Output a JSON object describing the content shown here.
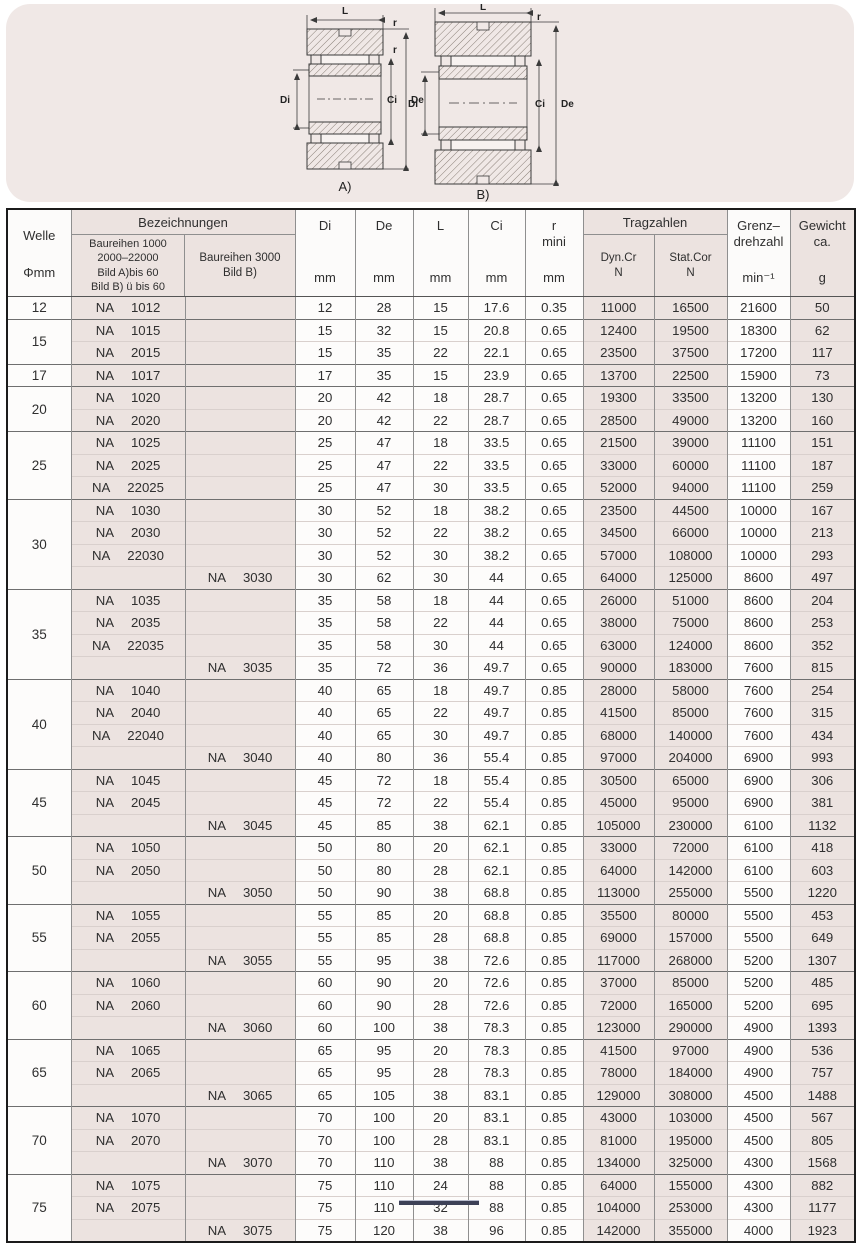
{
  "diagram": {
    "a": {
      "l": "L",
      "r1": "r",
      "r2": "r",
      "di": "Di",
      "ci": "Ci",
      "de": "De",
      "caption": "A)"
    },
    "b": {
      "l": "L",
      "r": "r",
      "di": "Di",
      "ci": "Ci",
      "de": "De",
      "caption": "B)"
    }
  },
  "table": {
    "header": {
      "welle_line1": "Welle",
      "welle_line2": "Φmm",
      "bezeichnungen": "Bezeichnungen",
      "baureihen_a": "Baureihen 1000\n2000–22000\nBild A)bis 60\nBild B) ü bis 60",
      "baureihen_b": "Baureihen 3000\nBild B)",
      "di": "Di",
      "de": "De",
      "l": "L",
      "ci": "Ci",
      "r_top": "r\nmini",
      "mm": "mm",
      "tragzahlen": "Tragzahlen",
      "dyn": "Dyn.Cr\nN",
      "stat": "Stat.Cor\nN",
      "grenz": "Grenz–\ndrehzahl",
      "min": "min⁻¹",
      "gewicht": "Gewicht\nca.",
      "g": "g"
    },
    "groups": [
      {
        "welle": "12",
        "rows": [
          [
            "NA 1012",
            "",
            "12",
            "28",
            "15",
            "17.6",
            "0.35",
            "11000",
            "16500",
            "21600",
            "50"
          ]
        ]
      },
      {
        "welle": "15",
        "rows": [
          [
            "NA 1015",
            "",
            "15",
            "32",
            "15",
            "20.8",
            "0.65",
            "12400",
            "19500",
            "18300",
            "62"
          ],
          [
            "NA 2015",
            "",
            "15",
            "35",
            "22",
            "22.1",
            "0.65",
            "23500",
            "37500",
            "17200",
            "117"
          ]
        ]
      },
      {
        "welle": "17",
        "rows": [
          [
            "NA 1017",
            "",
            "17",
            "35",
            "15",
            "23.9",
            "0.65",
            "13700",
            "22500",
            "15900",
            "73"
          ]
        ]
      },
      {
        "welle": "20",
        "rows": [
          [
            "NA 1020",
            "",
            "20",
            "42",
            "18",
            "28.7",
            "0.65",
            "19300",
            "33500",
            "13200",
            "130"
          ],
          [
            "NA 2020",
            "",
            "20",
            "42",
            "22",
            "28.7",
            "0.65",
            "28500",
            "49000",
            "13200",
            "160"
          ]
        ]
      },
      {
        "welle": "25",
        "rows": [
          [
            "NA 1025",
            "",
            "25",
            "47",
            "18",
            "33.5",
            "0.65",
            "21500",
            "39000",
            "11100",
            "151"
          ],
          [
            "NA 2025",
            "",
            "25",
            "47",
            "22",
            "33.5",
            "0.65",
            "33000",
            "60000",
            "11100",
            "187"
          ],
          [
            "NA 22025",
            "",
            "25",
            "47",
            "30",
            "33.5",
            "0.65",
            "52000",
            "94000",
            "11100",
            "259"
          ]
        ]
      },
      {
        "welle": "30",
        "rows": [
          [
            "NA 1030",
            "",
            "30",
            "52",
            "18",
            "38.2",
            "0.65",
            "23500",
            "44500",
            "10000",
            "167"
          ],
          [
            "NA 2030",
            "",
            "30",
            "52",
            "22",
            "38.2",
            "0.65",
            "34500",
            "66000",
            "10000",
            "213"
          ],
          [
            "NA 22030",
            "",
            "30",
            "52",
            "30",
            "38.2",
            "0.65",
            "57000",
            "108000",
            "10000",
            "293"
          ],
          [
            "",
            "NA 3030",
            "30",
            "62",
            "30",
            "44",
            "0.65",
            "64000",
            "125000",
            "8600",
            "497"
          ]
        ]
      },
      {
        "welle": "35",
        "rows": [
          [
            "NA 1035",
            "",
            "35",
            "58",
            "18",
            "44",
            "0.65",
            "26000",
            "51000",
            "8600",
            "204"
          ],
          [
            "NA 2035",
            "",
            "35",
            "58",
            "22",
            "44",
            "0.65",
            "38000",
            "75000",
            "8600",
            "253"
          ],
          [
            "NA 22035",
            "",
            "35",
            "58",
            "30",
            "44",
            "0.65",
            "63000",
            "124000",
            "8600",
            "352"
          ],
          [
            "",
            "NA 3035",
            "35",
            "72",
            "36",
            "49.7",
            "0.65",
            "90000",
            "183000",
            "7600",
            "815"
          ]
        ]
      },
      {
        "welle": "40",
        "rows": [
          [
            "NA 1040",
            "",
            "40",
            "65",
            "18",
            "49.7",
            "0.85",
            "28000",
            "58000",
            "7600",
            "254"
          ],
          [
            "NA 2040",
            "",
            "40",
            "65",
            "22",
            "49.7",
            "0.85",
            "41500",
            "85000",
            "7600",
            "315"
          ],
          [
            "NA 22040",
            "",
            "40",
            "65",
            "30",
            "49.7",
            "0.85",
            "68000",
            "140000",
            "7600",
            "434"
          ],
          [
            "",
            "NA 3040",
            "40",
            "80",
            "36",
            "55.4",
            "0.85",
            "97000",
            "204000",
            "6900",
            "993"
          ]
        ]
      },
      {
        "welle": "45",
        "rows": [
          [
            "NA 1045",
            "",
            "45",
            "72",
            "18",
            "55.4",
            "0.85",
            "30500",
            "65000",
            "6900",
            "306"
          ],
          [
            "NA 2045",
            "",
            "45",
            "72",
            "22",
            "55.4",
            "0.85",
            "45000",
            "95000",
            "6900",
            "381"
          ],
          [
            "",
            "NA 3045",
            "45",
            "85",
            "38",
            "62.1",
            "0.85",
            "105000",
            "230000",
            "6100",
            "1132"
          ]
        ]
      },
      {
        "welle": "50",
        "rows": [
          [
            "NA 1050",
            "",
            "50",
            "80",
            "20",
            "62.1",
            "0.85",
            "33000",
            "72000",
            "6100",
            "418"
          ],
          [
            "NA 2050",
            "",
            "50",
            "80",
            "28",
            "62.1",
            "0.85",
            "64000",
            "142000",
            "6100",
            "603"
          ],
          [
            "",
            "NA 3050",
            "50",
            "90",
            "38",
            "68.8",
            "0.85",
            "113000",
            "255000",
            "5500",
            "1220"
          ]
        ]
      },
      {
        "welle": "55",
        "rows": [
          [
            "NA 1055",
            "",
            "55",
            "85",
            "20",
            "68.8",
            "0.85",
            "35500",
            "80000",
            "5500",
            "453"
          ],
          [
            "NA 2055",
            "",
            "55",
            "85",
            "28",
            "68.8",
            "0.85",
            "69000",
            "157000",
            "5500",
            "649"
          ],
          [
            "",
            "NA 3055",
            "55",
            "95",
            "38",
            "72.6",
            "0.85",
            "117000",
            "268000",
            "5200",
            "1307"
          ]
        ]
      },
      {
        "welle": "60",
        "rows": [
          [
            "NA 1060",
            "",
            "60",
            "90",
            "20",
            "72.6",
            "0.85",
            "37000",
            "85000",
            "5200",
            "485"
          ],
          [
            "NA 2060",
            "",
            "60",
            "90",
            "28",
            "72.6",
            "0.85",
            "72000",
            "165000",
            "5200",
            "695"
          ],
          [
            "",
            "NA 3060",
            "60",
            "100",
            "38",
            "78.3",
            "0.85",
            "123000",
            "290000",
            "4900",
            "1393"
          ]
        ]
      },
      {
        "welle": "65",
        "rows": [
          [
            "NA 1065",
            "",
            "65",
            "95",
            "20",
            "78.3",
            "0.85",
            "41500",
            "97000",
            "4900",
            "536"
          ],
          [
            "NA 2065",
            "",
            "65",
            "95",
            "28",
            "78.3",
            "0.85",
            "78000",
            "184000",
            "4900",
            "757"
          ],
          [
            "",
            "NA 3065",
            "65",
            "105",
            "38",
            "83.1",
            "0.85",
            "129000",
            "308000",
            "4500",
            "1488"
          ]
        ]
      },
      {
        "welle": "70",
        "rows": [
          [
            "NA 1070",
            "",
            "70",
            "100",
            "20",
            "83.1",
            "0.85",
            "43000",
            "103000",
            "4500",
            "567"
          ],
          [
            "NA 2070",
            "",
            "70",
            "100",
            "28",
            "83.1",
            "0.85",
            "81000",
            "195000",
            "4500",
            "805"
          ],
          [
            "",
            "NA 3070",
            "70",
            "110",
            "38",
            "88",
            "0.85",
            "134000",
            "325000",
            "4300",
            "1568"
          ]
        ]
      },
      {
        "welle": "75",
        "rows": [
          [
            "NA 1075",
            "",
            "75",
            "110",
            "24",
            "88",
            "0.85",
            "64000",
            "155000",
            "4300",
            "882"
          ],
          [
            "NA 2075",
            "",
            "75",
            "110",
            "32",
            "88",
            "0.85",
            "104000",
            "253000",
            "4300",
            "1177"
          ],
          [
            "",
            "NA 3075",
            "75",
            "120",
            "38",
            "96",
            "0.85",
            "142000",
            "355000",
            "4000",
            "1923"
          ]
        ]
      }
    ]
  }
}
